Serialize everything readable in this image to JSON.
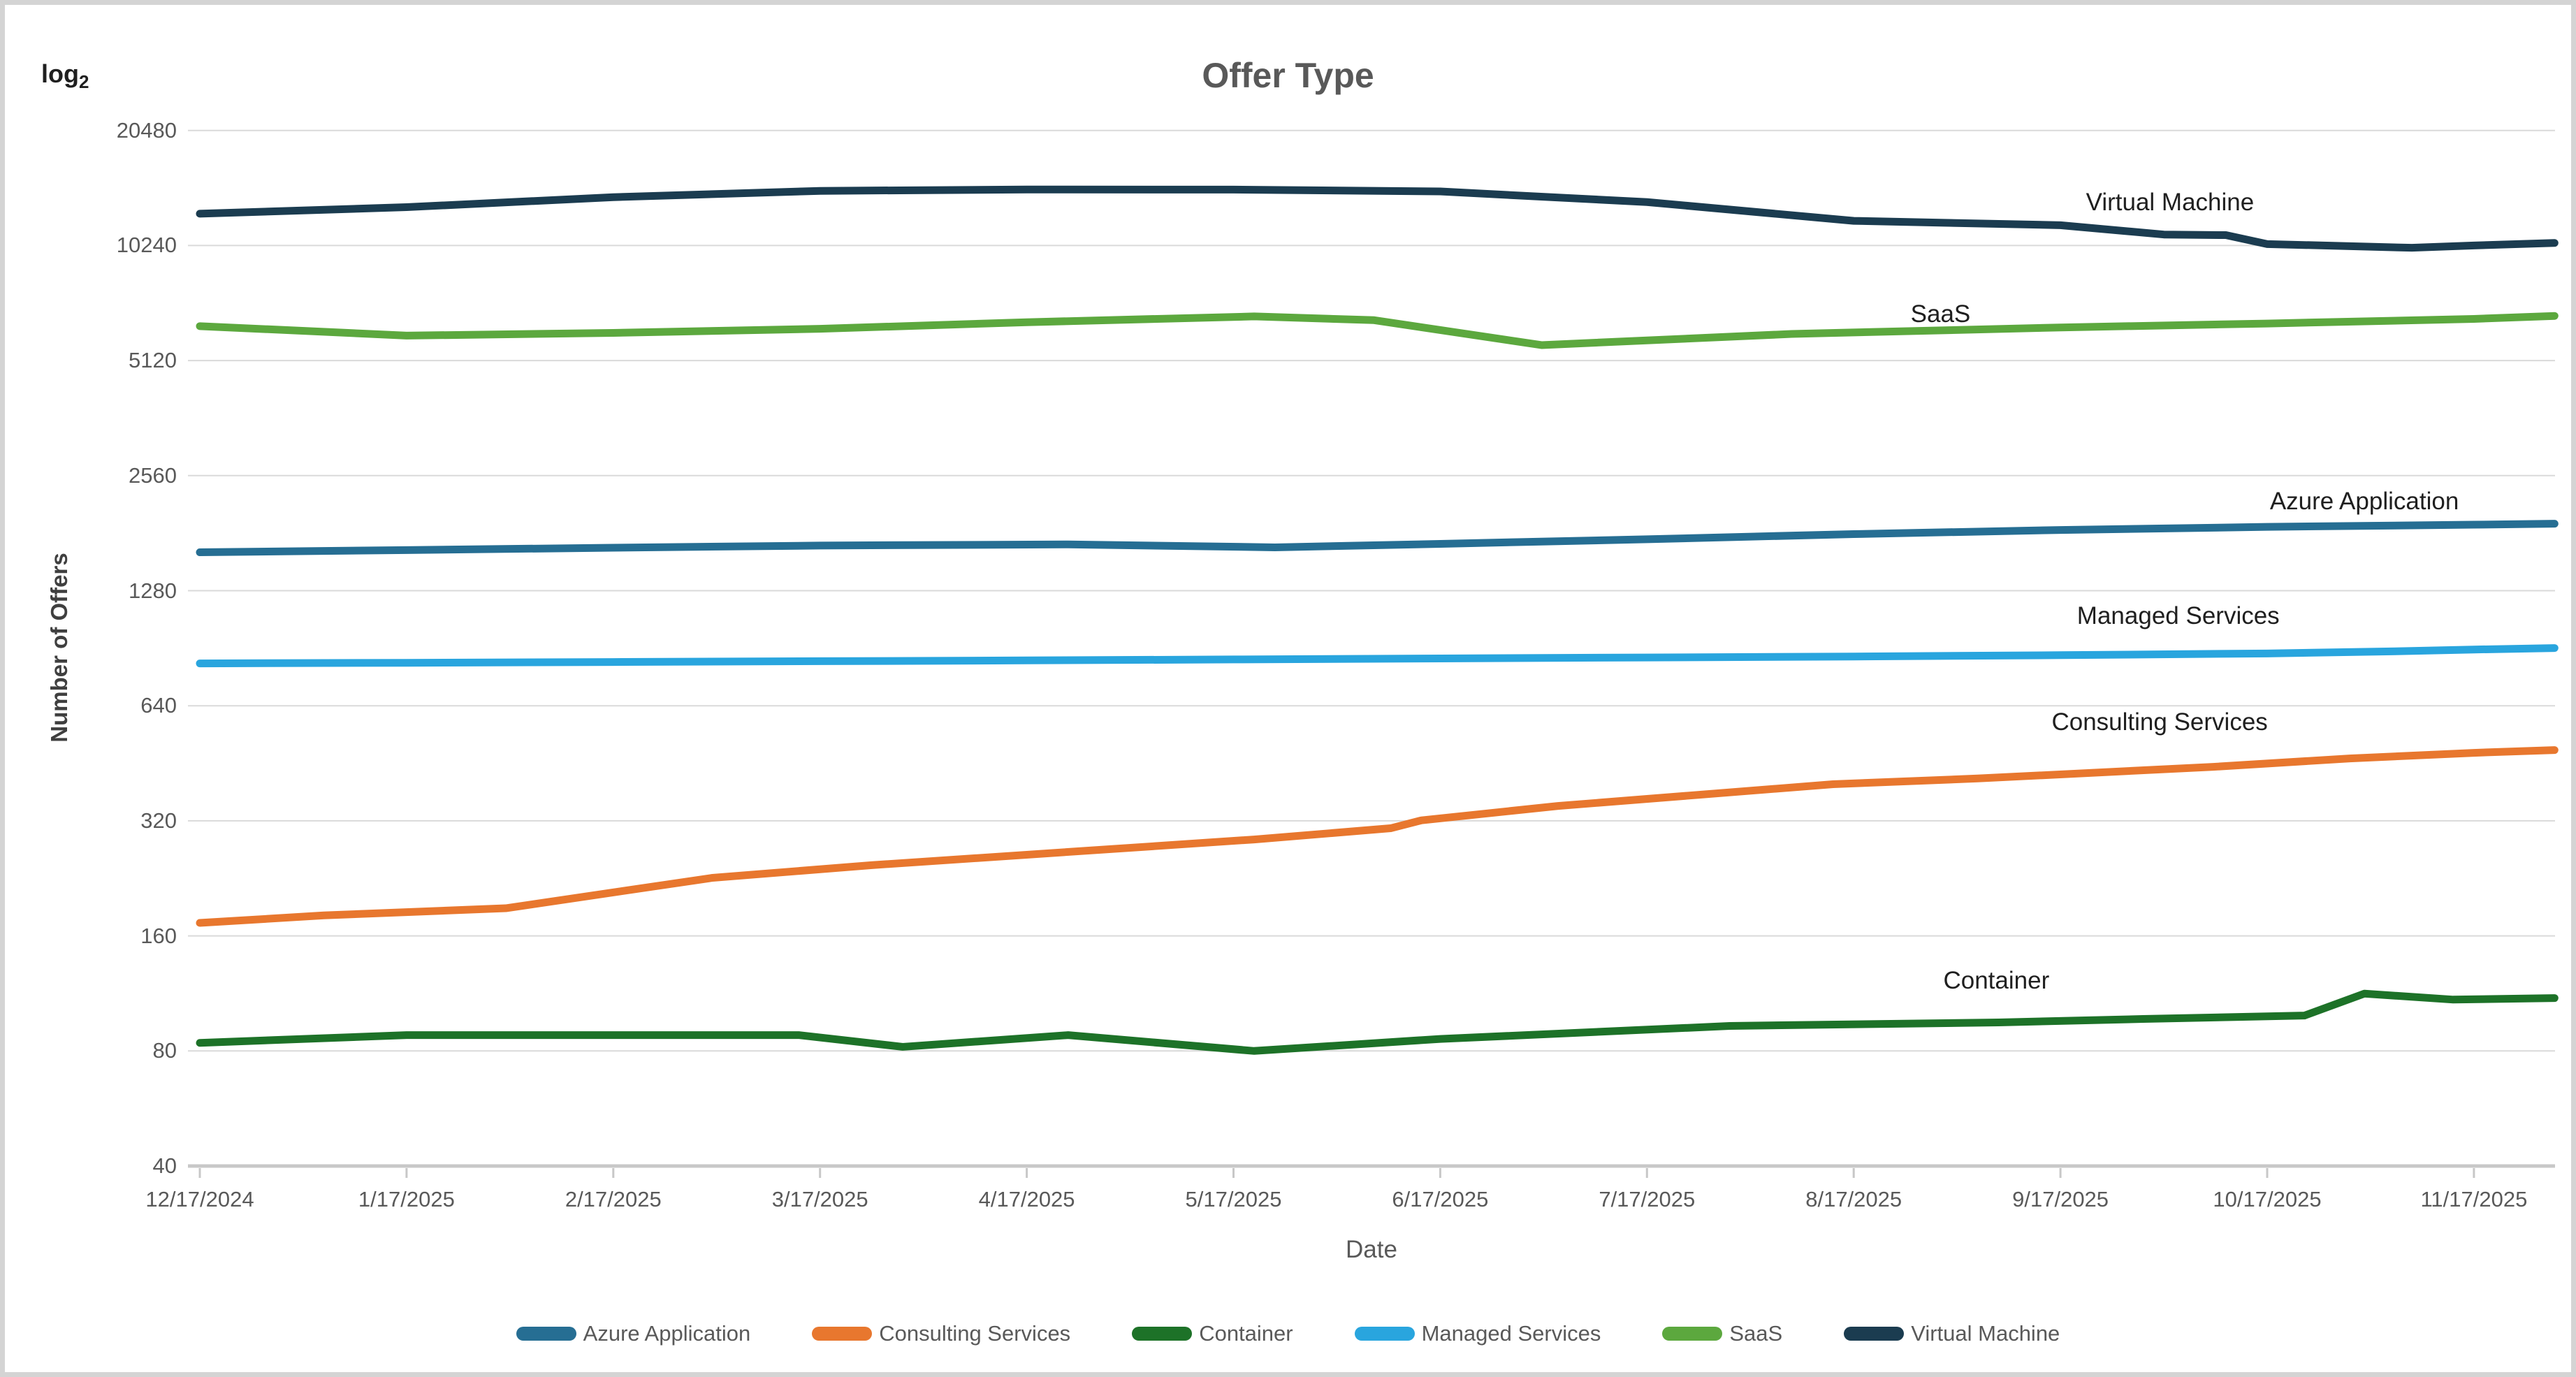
{
  "title": "Offer Type",
  "y_axis": {
    "label": "Number of Offers",
    "scale_note": {
      "prefix": "log",
      "sub": "2"
    },
    "ticks": [
      20480,
      10240,
      5120,
      2560,
      1280,
      640,
      320,
      160,
      80,
      40
    ]
  },
  "x_axis": {
    "label": "Date",
    "ticks": [
      "12/17/2024",
      "1/17/2025",
      "2/17/2025",
      "3/17/2025",
      "4/17/2025",
      "5/17/2025",
      "6/17/2025",
      "7/17/2025",
      "8/17/2025",
      "9/17/2025",
      "10/17/2025",
      "11/17/2025"
    ]
  },
  "chart_data": {
    "type": "line",
    "y_scale": "log2",
    "ylim": [
      40,
      20480
    ],
    "grid": "horizontal",
    "legend_position": "bottom",
    "x_unit": "months since 12/17/2024 (ticks monthly, lines extend ~12 days past last tick)",
    "series": [
      {
        "name": "Azure Application",
        "color": "#266E93",
        "x": [
          0,
          1,
          2,
          3,
          4.2,
          5.2,
          6,
          7,
          8,
          9,
          10,
          11,
          11.39
        ],
        "values": [
          1613,
          1635,
          1658,
          1680,
          1692,
          1662,
          1697,
          1745,
          1800,
          1845,
          1880,
          1905,
          1916
        ]
      },
      {
        "name": "Consulting Services",
        "color": "#E8772E",
        "x": [
          0,
          0.6,
          1.48,
          2.48,
          3.25,
          5.1,
          5.76,
          5.91,
          6.57,
          7.9,
          8.6,
          9.74,
          10.4,
          11,
          11.39
        ],
        "values": [
          173,
          181,
          189,
          227,
          245,
          286,
          306,
          321,
          350,
          399,
          413,
          443,
          466,
          482,
          490
        ]
      },
      {
        "name": "Container",
        "color": "#1D7228",
        "x": [
          0,
          1,
          2.9,
          3.4,
          4.2,
          5.1,
          6,
          7.4,
          8.7,
          9.4,
          10.18,
          10.47,
          10.9,
          11.39
        ],
        "values": [
          84,
          88,
          88,
          82,
          88,
          80,
          86,
          93,
          95,
          97,
          99,
          113,
          109,
          110
        ]
      },
      {
        "name": "Managed Services",
        "color": "#29A5DE",
        "x": [
          0,
          1,
          2,
          3,
          4,
          5,
          6,
          7,
          8,
          9,
          10,
          10.6,
          11,
          11.39
        ],
        "values": [
          826,
          829,
          833,
          837,
          841,
          846,
          851,
          856,
          861,
          868,
          877,
          888,
          898,
          906
        ]
      },
      {
        "name": "SaaS",
        "color": "#5CA83E",
        "x": [
          0,
          1,
          2,
          3,
          4,
          5.1,
          5.68,
          6.49,
          7.7,
          9,
          10,
          11,
          11.39
        ],
        "values": [
          6300,
          5950,
          6050,
          6200,
          6450,
          6680,
          6530,
          5620,
          6010,
          6250,
          6400,
          6580,
          6700
        ]
      },
      {
        "name": "Virtual Machine",
        "color": "#1B3C50",
        "x": [
          0,
          1,
          2,
          3,
          4,
          5,
          6,
          7,
          8,
          9,
          9.5,
          9.8,
          10,
          10.7,
          11,
          11.39
        ],
        "values": [
          12400,
          12900,
          13700,
          14230,
          14350,
          14340,
          14180,
          13300,
          11880,
          11570,
          10940,
          10900,
          10330,
          10100,
          10240,
          10400
        ]
      }
    ],
    "annotations": [
      {
        "text": "Virtual Machine",
        "x": 9.53,
        "value": 13260
      },
      {
        "text": "SaaS",
        "x": 8.42,
        "value": 6760
      },
      {
        "text": "Azure Application",
        "x": 10.47,
        "value": 2189
      },
      {
        "text": "Managed Services",
        "x": 9.57,
        "value": 1098
      },
      {
        "text": "Consulting Services",
        "x": 9.48,
        "value": 580
      },
      {
        "text": "Container",
        "x": 8.69,
        "value": 122
      }
    ]
  },
  "legend": [
    {
      "label": "Azure Application",
      "color": "#266E93"
    },
    {
      "label": "Consulting Services",
      "color": "#E8772E"
    },
    {
      "label": "Container",
      "color": "#1D7228"
    },
    {
      "label": "Managed Services",
      "color": "#29A5DE"
    },
    {
      "label": "SaaS",
      "color": "#5CA83E"
    },
    {
      "label": "Virtual Machine",
      "color": "#1B3C50"
    }
  ]
}
